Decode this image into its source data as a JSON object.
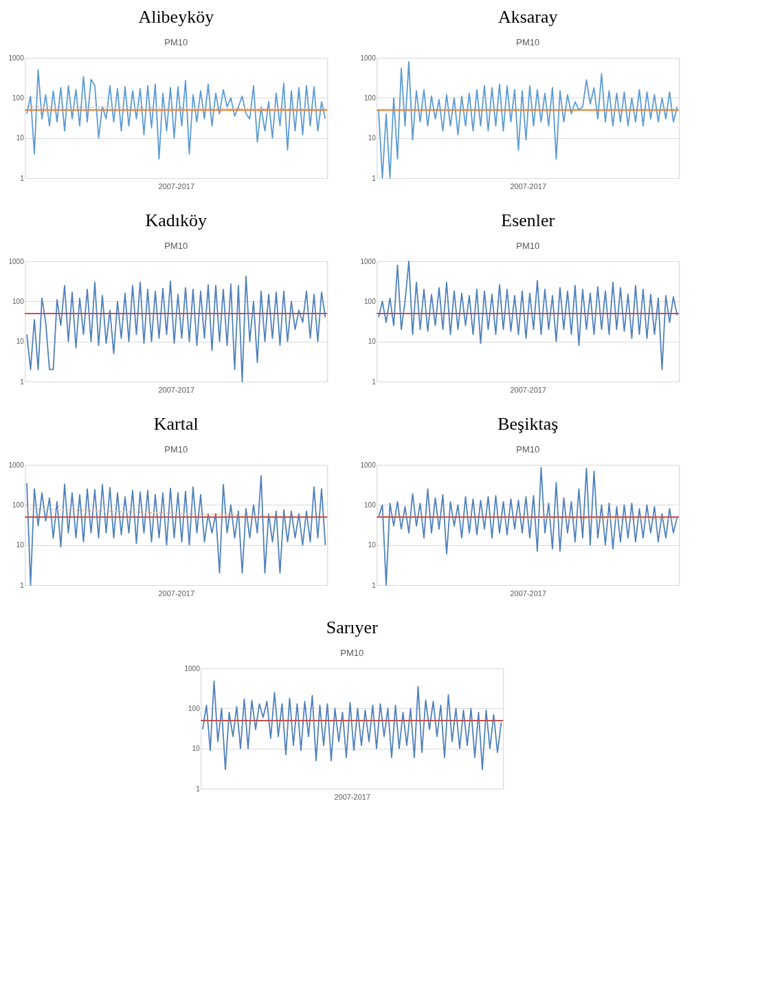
{
  "chart_data": [
    {
      "type": "line",
      "title": "Alibeyköy",
      "subtitle": "PM10",
      "xlabel": "2007-2017",
      "log": true,
      "grid": "y",
      "tick_labels": "y",
      "ylim": [
        1,
        1000
      ],
      "yticks": [
        1,
        10,
        100,
        1000
      ],
      "categories": [
        null,
        null,
        null,
        null,
        null,
        null,
        null,
        null,
        null,
        null,
        null,
        null,
        null,
        null,
        null,
        null,
        null,
        null,
        null,
        null,
        null,
        null,
        null,
        null,
        null,
        null,
        null,
        null,
        null,
        null,
        null,
        null,
        null,
        null,
        null,
        null,
        null,
        null,
        null,
        null,
        null,
        null,
        null,
        null,
        null,
        null,
        null,
        null,
        null,
        null,
        null,
        null,
        null,
        null,
        null,
        null,
        null,
        null,
        null,
        null,
        null,
        null,
        null,
        null,
        null,
        null,
        null,
        null,
        null,
        null,
        null,
        null,
        null,
        null,
        null,
        null,
        null,
        null,
        null,
        null
      ],
      "series": [
        {
          "color": "#5b9bd5",
          "values": [
            40,
            110,
            4,
            500,
            30,
            120,
            20,
            150,
            25,
            180,
            15,
            200,
            30,
            160,
            20,
            340,
            25,
            290,
            200,
            10,
            60,
            30,
            200,
            25,
            170,
            15,
            190,
            20,
            150,
            30,
            170,
            12,
            200,
            18,
            220,
            3,
            130,
            15,
            180,
            10,
            190,
            20,
            270,
            4,
            120,
            25,
            150,
            30,
            220,
            20,
            130,
            40,
            160,
            60,
            100,
            35,
            60,
            110,
            40,
            30,
            200,
            8,
            60,
            15,
            80,
            10,
            130,
            20,
            230,
            5,
            150,
            15,
            180,
            12,
            200,
            20,
            190,
            15,
            80,
            30
          ]
        },
        {
          "color": "#f4b183",
          "line_style": "dotted",
          "values": [
            60,
            null,
            null,
            null,
            null,
            null,
            null,
            null,
            null,
            null,
            null,
            null,
            null,
            null,
            null,
            null,
            null,
            null,
            null,
            null,
            null,
            null,
            null,
            null,
            null,
            null,
            null,
            null,
            null,
            null,
            null,
            null,
            null,
            null,
            null,
            null,
            null,
            null,
            null,
            null,
            null,
            null,
            null,
            null,
            null,
            null,
            null,
            null,
            null,
            null,
            null,
            null,
            null,
            null,
            null,
            null,
            null,
            null,
            null,
            null,
            null,
            null,
            null,
            null,
            null,
            null,
            null,
            null,
            null,
            null,
            null,
            null,
            null,
            null,
            null,
            null,
            null,
            null,
            null,
            52
          ]
        }
      ],
      "ref_lines": [
        {
          "axis": "y",
          "value": 50,
          "color": "#ed7d31"
        }
      ]
    },
    {
      "type": "line",
      "title": "Aksaray",
      "subtitle": "PM10",
      "xlabel": "2007-2017",
      "log": true,
      "grid": "y",
      "tick_labels": "y",
      "ylim": [
        1,
        1000
      ],
      "yticks": [
        1,
        10,
        100,
        1000
      ],
      "categories": [
        null,
        null,
        null,
        null,
        null,
        null,
        null,
        null,
        null,
        null,
        null,
        null,
        null,
        null,
        null,
        null,
        null,
        null,
        null,
        null,
        null,
        null,
        null,
        null,
        null,
        null,
        null,
        null,
        null,
        null,
        null,
        null,
        null,
        null,
        null,
        null,
        null,
        null,
        null,
        null,
        null,
        null,
        null,
        null,
        null,
        null,
        null,
        null,
        null,
        null,
        null,
        null,
        null,
        null,
        null,
        null,
        null,
        null,
        null,
        null,
        null,
        null,
        null,
        null,
        null,
        null,
        null,
        null,
        null,
        null,
        null,
        null,
        null,
        null,
        null,
        null,
        null,
        null,
        null,
        null
      ],
      "series": [
        {
          "color": "#5b9bd5",
          "values": [
            50,
            1,
            40,
            1,
            100,
            3,
            550,
            20,
            800,
            9,
            150,
            25,
            160,
            20,
            110,
            30,
            90,
            15,
            120,
            20,
            100,
            12,
            110,
            20,
            130,
            15,
            160,
            20,
            200,
            15,
            180,
            20,
            220,
            15,
            200,
            25,
            160,
            5,
            150,
            9,
            200,
            20,
            160,
            25,
            130,
            20,
            180,
            3,
            150,
            25,
            120,
            40,
            80,
            50,
            60,
            280,
            70,
            180,
            30,
            400,
            25,
            150,
            20,
            130,
            25,
            140,
            20,
            100,
            25,
            160,
            20,
            140,
            30,
            120,
            25,
            100,
            30,
            140,
            25,
            60
          ]
        }
      ],
      "ref_lines": [
        {
          "axis": "y",
          "value": 50,
          "color": "#ed7d31"
        }
      ]
    },
    {
      "type": "line",
      "title": "Kadıköy",
      "subtitle": "PM10",
      "xlabel": "2007-2017",
      "log": true,
      "grid": "y",
      "tick_labels": "y",
      "ylim": [
        1,
        1000
      ],
      "yticks": [
        1,
        10,
        100,
        1000
      ],
      "categories": [
        null,
        null,
        null,
        null,
        null,
        null,
        null,
        null,
        null,
        null,
        null,
        null,
        null,
        null,
        null,
        null,
        null,
        null,
        null,
        null,
        null,
        null,
        null,
        null,
        null,
        null,
        null,
        null,
        null,
        null,
        null,
        null,
        null,
        null,
        null,
        null,
        null,
        null,
        null,
        null,
        null,
        null,
        null,
        null,
        null,
        null,
        null,
        null,
        null,
        null,
        null,
        null,
        null,
        null,
        null,
        null,
        null,
        null,
        null,
        null,
        null,
        null,
        null,
        null,
        null,
        null,
        null,
        null,
        null,
        null,
        null,
        null,
        null,
        null,
        null,
        null,
        null,
        null,
        null,
        null
      ],
      "series": [
        {
          "color": "#4f81bd",
          "values": [
            15,
            2,
            35,
            2,
            120,
            30,
            2,
            2,
            110,
            25,
            250,
            10,
            170,
            7,
            120,
            15,
            200,
            10,
            300,
            8,
            140,
            9,
            60,
            5,
            100,
            12,
            160,
            10,
            250,
            15,
            300,
            9,
            200,
            10,
            180,
            12,
            210,
            15,
            320,
            9,
            150,
            12,
            220,
            10,
            200,
            8,
            180,
            12,
            260,
            6,
            250,
            10,
            200,
            8,
            270,
            2,
            250,
            1,
            420,
            10,
            100,
            3,
            180,
            10,
            150,
            12,
            170,
            8,
            180,
            10,
            100,
            20,
            60,
            30,
            180,
            12,
            150,
            10,
            170,
            40
          ]
        }
      ],
      "ref_lines": [
        {
          "axis": "y",
          "value": 50,
          "color": "#c0504d"
        }
      ]
    },
    {
      "type": "line",
      "title": "Esenler",
      "subtitle": "PM10",
      "xlabel": "2007-2017",
      "log": true,
      "grid": "y",
      "tick_labels": "y",
      "ylim": [
        1,
        1000
      ],
      "yticks": [
        1,
        10,
        100,
        1000
      ],
      "categories": [
        null,
        null,
        null,
        null,
        null,
        null,
        null,
        null,
        null,
        null,
        null,
        null,
        null,
        null,
        null,
        null,
        null,
        null,
        null,
        null,
        null,
        null,
        null,
        null,
        null,
        null,
        null,
        null,
        null,
        null,
        null,
        null,
        null,
        null,
        null,
        null,
        null,
        null,
        null,
        null,
        null,
        null,
        null,
        null,
        null,
        null,
        null,
        null,
        null,
        null,
        null,
        null,
        null,
        null,
        null,
        null,
        null,
        null,
        null,
        null,
        null,
        null,
        null,
        null,
        null,
        null,
        null,
        null,
        null,
        null,
        null,
        null,
        null,
        null,
        null,
        null,
        null,
        null,
        null,
        null
      ],
      "series": [
        {
          "color": "#4f81bd",
          "values": [
            40,
            100,
            30,
            120,
            25,
            800,
            20,
            100,
            1000,
            15,
            300,
            20,
            200,
            18,
            150,
            25,
            220,
            20,
            300,
            15,
            180,
            20,
            160,
            25,
            140,
            15,
            200,
            9,
            180,
            20,
            150,
            15,
            260,
            20,
            200,
            18,
            140,
            15,
            180,
            12,
            160,
            20,
            330,
            15,
            200,
            20,
            140,
            10,
            220,
            20,
            180,
            15,
            250,
            8,
            200,
            20,
            160,
            15,
            230,
            20,
            180,
            15,
            300,
            20,
            220,
            18,
            150,
            12,
            250,
            15,
            200,
            12,
            150,
            15,
            120,
            2,
            140,
            30,
            130,
            45
          ]
        }
      ],
      "ref_lines": [
        {
          "axis": "y",
          "value": 50,
          "color": "#c0504d"
        }
      ]
    },
    {
      "type": "line",
      "title": "Kartal",
      "subtitle": "PM10",
      "xlabel": "2007-2017",
      "log": true,
      "grid": "y",
      "tick_labels": "y",
      "ylim": [
        1,
        1000
      ],
      "yticks": [
        1,
        10,
        100,
        1000
      ],
      "categories": [
        null,
        null,
        null,
        null,
        null,
        null,
        null,
        null,
        null,
        null,
        null,
        null,
        null,
        null,
        null,
        null,
        null,
        null,
        null,
        null,
        null,
        null,
        null,
        null,
        null,
        null,
        null,
        null,
        null,
        null,
        null,
        null,
        null,
        null,
        null,
        null,
        null,
        null,
        null,
        null,
        null,
        null,
        null,
        null,
        null,
        null,
        null,
        null,
        null,
        null,
        null,
        null,
        null,
        null,
        null,
        null,
        null,
        null,
        null,
        null,
        null,
        null,
        null,
        null,
        null,
        null,
        null,
        null,
        null,
        null,
        null,
        null,
        null,
        null,
        null,
        null,
        null,
        null,
        null,
        null
      ],
      "series": [
        {
          "color": "#4f81bd",
          "values": [
            350,
            1,
            250,
            30,
            200,
            40,
            150,
            15,
            120,
            9,
            330,
            20,
            200,
            15,
            180,
            12,
            250,
            20,
            240,
            15,
            320,
            20,
            270,
            15,
            200,
            18,
            160,
            20,
            230,
            11,
            210,
            20,
            230,
            12,
            180,
            15,
            200,
            10,
            260,
            15,
            200,
            12,
            220,
            10,
            280,
            20,
            180,
            12,
            60,
            20,
            60,
            2,
            320,
            20,
            100,
            15,
            70,
            2,
            80,
            15,
            100,
            20,
            540,
            2,
            60,
            12,
            70,
            2,
            75,
            12,
            70,
            15,
            60,
            10,
            70,
            12,
            280,
            15,
            250,
            10
          ]
        },
        {
          "color": "#f4b183",
          "line_style": "dotted",
          "values": [
            80,
            null,
            null,
            null,
            null,
            null,
            null,
            null,
            null,
            null,
            null,
            null,
            null,
            null,
            null,
            null,
            null,
            null,
            null,
            null,
            null,
            null,
            null,
            null,
            null,
            null,
            null,
            null,
            null,
            null,
            null,
            null,
            null,
            null,
            null,
            null,
            null,
            null,
            null,
            null,
            null,
            null,
            null,
            null,
            null,
            null,
            null,
            null,
            null,
            null,
            null,
            null,
            null,
            null,
            null,
            null,
            null,
            null,
            null,
            null,
            null,
            null,
            null,
            null,
            null,
            null,
            null,
            null,
            null,
            null,
            null,
            null,
            null,
            null,
            null,
            null,
            null,
            null,
            null,
            48
          ]
        }
      ],
      "ref_lines": [
        {
          "axis": "y",
          "value": 50,
          "color": "#c0504d"
        }
      ]
    },
    {
      "type": "line",
      "title": "Beşiktaş",
      "subtitle": "PM10",
      "xlabel": "2007-2017",
      "log": true,
      "grid": "y",
      "tick_labels": "y",
      "ylim": [
        1,
        1000
      ],
      "yticks": [
        1,
        10,
        100,
        1000
      ],
      "categories": [
        null,
        null,
        null,
        null,
        null,
        null,
        null,
        null,
        null,
        null,
        null,
        null,
        null,
        null,
        null,
        null,
        null,
        null,
        null,
        null,
        null,
        null,
        null,
        null,
        null,
        null,
        null,
        null,
        null,
        null,
        null,
        null,
        null,
        null,
        null,
        null,
        null,
        null,
        null,
        null,
        null,
        null,
        null,
        null,
        null,
        null,
        null,
        null,
        null,
        null,
        null,
        null,
        null,
        null,
        null,
        null,
        null,
        null,
        null,
        null,
        null,
        null,
        null,
        null,
        null,
        null,
        null,
        null,
        null,
        null,
        null,
        null,
        null,
        null,
        null,
        null,
        null,
        null,
        null,
        null
      ],
      "series": [
        {
          "color": "#4f81bd",
          "values": [
            50,
            100,
            1,
            110,
            30,
            120,
            25,
            90,
            20,
            190,
            30,
            110,
            15,
            250,
            20,
            150,
            25,
            180,
            6,
            120,
            30,
            100,
            15,
            160,
            20,
            140,
            18,
            130,
            25,
            160,
            15,
            170,
            20,
            120,
            18,
            140,
            25,
            130,
            20,
            160,
            15,
            170,
            7,
            860,
            20,
            110,
            8,
            360,
            7,
            150,
            20,
            120,
            12,
            250,
            15,
            820,
            10,
            700,
            15,
            100,
            10,
            110,
            8,
            90,
            12,
            100,
            15,
            110,
            12,
            80,
            15,
            100,
            20,
            90,
            12,
            60,
            15,
            80,
            20,
            50
          ]
        },
        {
          "color": "#f4b183",
          "line_style": "dotted",
          "values": [
            52,
            null,
            null,
            null,
            null,
            null,
            null,
            null,
            null,
            null,
            null,
            null,
            null,
            null,
            null,
            null,
            null,
            null,
            null,
            null,
            null,
            null,
            null,
            null,
            null,
            null,
            null,
            null,
            null,
            null,
            null,
            null,
            null,
            null,
            null,
            null,
            null,
            null,
            null,
            null,
            null,
            null,
            null,
            null,
            null,
            null,
            null,
            null,
            null,
            null,
            null,
            null,
            null,
            null,
            null,
            null,
            null,
            null,
            null,
            null,
            null,
            null,
            null,
            null,
            null,
            null,
            null,
            null,
            null,
            null,
            null,
            null,
            null,
            null,
            null,
            null,
            null,
            null,
            null,
            44
          ]
        }
      ],
      "ref_lines": [
        {
          "axis": "y",
          "value": 50,
          "color": "#c0504d"
        }
      ]
    },
    {
      "type": "line",
      "title": "Sarıyer",
      "subtitle": "PM10",
      "xlabel": "2007-2017",
      "log": true,
      "grid": "y",
      "tick_labels": "y",
      "ylim": [
        1,
        1000
      ],
      "yticks": [
        1,
        10,
        100,
        1000
      ],
      "categories": [
        null,
        null,
        null,
        null,
        null,
        null,
        null,
        null,
        null,
        null,
        null,
        null,
        null,
        null,
        null,
        null,
        null,
        null,
        null,
        null,
        null,
        null,
        null,
        null,
        null,
        null,
        null,
        null,
        null,
        null,
        null,
        null,
        null,
        null,
        null,
        null,
        null,
        null,
        null,
        null,
        null,
        null,
        null,
        null,
        null,
        null,
        null,
        null,
        null,
        null,
        null,
        null,
        null,
        null,
        null,
        null,
        null,
        null,
        null,
        null,
        null,
        null,
        null,
        null,
        null,
        null,
        null,
        null,
        null,
        null,
        null,
        null,
        null,
        null,
        null,
        null,
        null,
        null,
        null,
        null
      ],
      "series": [
        {
          "color": "#4f81bd",
          "values": [
            30,
            120,
            9,
            480,
            15,
            100,
            3,
            80,
            20,
            110,
            10,
            170,
            10,
            160,
            30,
            130,
            60,
            150,
            18,
            250,
            20,
            130,
            7,
            180,
            12,
            130,
            9,
            150,
            20,
            210,
            5,
            120,
            12,
            130,
            5,
            100,
            15,
            80,
            6,
            140,
            9,
            100,
            12,
            90,
            15,
            120,
            10,
            130,
            20,
            100,
            6,
            120,
            10,
            80,
            12,
            100,
            6,
            350,
            8,
            160,
            30,
            150,
            20,
            120,
            6,
            220,
            15,
            100,
            10,
            90,
            12,
            100,
            6,
            80,
            3,
            90,
            10,
            70,
            8,
            45
          ]
        }
      ],
      "ref_lines": [
        {
          "axis": "y",
          "value": 50,
          "color": "#c0504d"
        }
      ]
    }
  ]
}
